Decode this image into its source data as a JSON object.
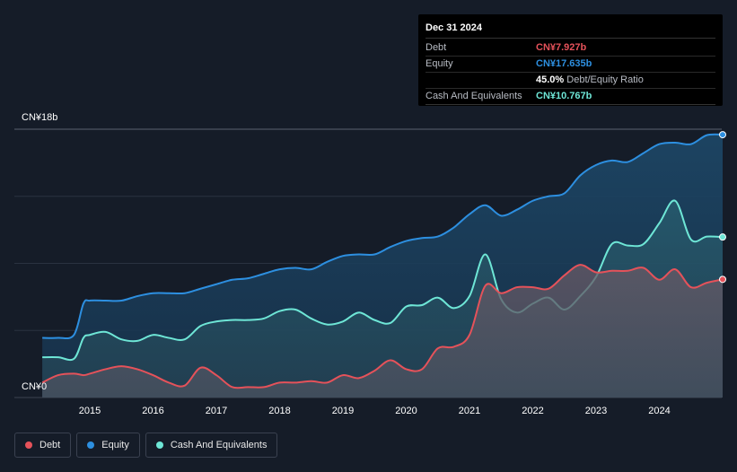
{
  "tooltip": {
    "date": "Dec 31 2024",
    "debt_label": "Debt",
    "debt_value": "CN¥7.927b",
    "equity_label": "Equity",
    "equity_value": "CN¥17.635b",
    "ratio_value": "45.0%",
    "ratio_label": "Debt/Equity Ratio",
    "cash_label": "Cash And Equivalents",
    "cash_value": "CN¥10.767b"
  },
  "legend": {
    "debt": "Debt",
    "equity": "Equity",
    "cash": "Cash And Equivalents"
  },
  "colors": {
    "debt": "#e5525a",
    "equity": "#2d8fe0",
    "cash": "#6ee6d6",
    "background": "#151c28"
  },
  "chart_data": {
    "type": "area",
    "title": "",
    "xlabel": "",
    "ylabel": "",
    "ylim": [
      0,
      18
    ],
    "y_unit": "CN¥b",
    "y_tick_labels": [
      "CN¥18b",
      "CN¥0"
    ],
    "x_tick_labels": [
      "2015",
      "2016",
      "2017",
      "2018",
      "2019",
      "2020",
      "2021",
      "2022",
      "2023",
      "2024"
    ],
    "x_range": [
      2014.25,
      2025.0
    ],
    "series": [
      {
        "name": "Equity",
        "x": [
          2014.25,
          2014.5,
          2014.75,
          2014.9,
          2015.0,
          2015.25,
          2015.5,
          2015.75,
          2016.0,
          2016.25,
          2016.5,
          2016.75,
          2017.0,
          2017.25,
          2017.5,
          2017.75,
          2018.0,
          2018.25,
          2018.5,
          2018.75,
          2019.0,
          2019.25,
          2019.5,
          2019.75,
          2020.0,
          2020.25,
          2020.5,
          2020.75,
          2021.0,
          2021.25,
          2021.5,
          2021.75,
          2022.0,
          2022.25,
          2022.5,
          2022.75,
          2023.0,
          2023.25,
          2023.5,
          2023.75,
          2024.0,
          2024.25,
          2024.5,
          2024.75,
          2025.0
        ],
        "values": [
          4.0,
          4.0,
          4.2,
          6.3,
          6.5,
          6.5,
          6.5,
          6.8,
          7.0,
          7.0,
          7.0,
          7.3,
          7.6,
          7.9,
          8.0,
          8.3,
          8.6,
          8.7,
          8.6,
          9.1,
          9.5,
          9.6,
          9.6,
          10.1,
          10.5,
          10.7,
          10.8,
          11.4,
          12.3,
          12.9,
          12.2,
          12.6,
          13.2,
          13.5,
          13.7,
          14.9,
          15.6,
          15.9,
          15.8,
          16.4,
          17.0,
          17.1,
          17.0,
          17.6,
          17.635
        ]
      },
      {
        "name": "Cash And Equivalents",
        "x": [
          2014.25,
          2014.5,
          2014.75,
          2014.9,
          2015.0,
          2015.25,
          2015.5,
          2015.75,
          2016.0,
          2016.25,
          2016.5,
          2016.75,
          2017.0,
          2017.25,
          2017.5,
          2017.75,
          2018.0,
          2018.25,
          2018.5,
          2018.75,
          2019.0,
          2019.25,
          2019.5,
          2019.75,
          2020.0,
          2020.25,
          2020.5,
          2020.75,
          2021.0,
          2021.25,
          2021.5,
          2021.75,
          2022.0,
          2022.25,
          2022.5,
          2022.75,
          2023.0,
          2023.25,
          2023.5,
          2023.75,
          2024.0,
          2024.25,
          2024.5,
          2024.75,
          2025.0
        ],
        "values": [
          2.7,
          2.7,
          2.6,
          4.0,
          4.2,
          4.4,
          3.9,
          3.8,
          4.2,
          4.0,
          3.9,
          4.8,
          5.1,
          5.2,
          5.2,
          5.3,
          5.8,
          5.9,
          5.3,
          4.9,
          5.1,
          5.7,
          5.2,
          5.0,
          6.1,
          6.2,
          6.7,
          6.0,
          6.8,
          9.6,
          6.6,
          5.7,
          6.3,
          6.7,
          5.9,
          6.8,
          8.1,
          10.3,
          10.2,
          10.3,
          11.7,
          13.2,
          10.6,
          10.8,
          10.767
        ]
      },
      {
        "name": "Debt",
        "x": [
          2014.25,
          2014.5,
          2014.75,
          2014.9,
          2015.0,
          2015.25,
          2015.5,
          2015.75,
          2016.0,
          2016.25,
          2016.5,
          2016.75,
          2017.0,
          2017.25,
          2017.5,
          2017.75,
          2018.0,
          2018.25,
          2018.5,
          2018.75,
          2019.0,
          2019.25,
          2019.5,
          2019.75,
          2020.0,
          2020.25,
          2020.5,
          2020.75,
          2021.0,
          2021.25,
          2021.5,
          2021.75,
          2022.0,
          2022.25,
          2022.5,
          2022.75,
          2023.0,
          2023.25,
          2023.5,
          2023.75,
          2024.0,
          2024.25,
          2024.5,
          2024.75,
          2025.0
        ],
        "values": [
          1.0,
          1.5,
          1.6,
          1.5,
          1.6,
          1.9,
          2.1,
          1.9,
          1.5,
          1.0,
          0.8,
          2.0,
          1.5,
          0.7,
          0.7,
          0.7,
          1.0,
          1.0,
          1.1,
          1.0,
          1.5,
          1.3,
          1.8,
          2.5,
          1.9,
          1.9,
          3.3,
          3.4,
          4.2,
          7.5,
          7.0,
          7.4,
          7.4,
          7.3,
          8.2,
          8.9,
          8.4,
          8.5,
          8.5,
          8.7,
          7.9,
          8.6,
          7.4,
          7.7,
          7.927
        ]
      }
    ]
  }
}
